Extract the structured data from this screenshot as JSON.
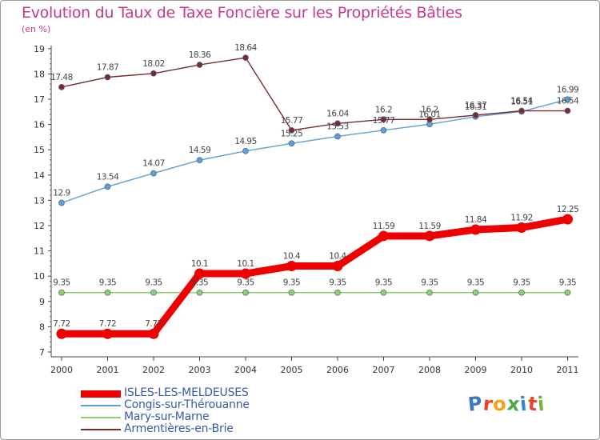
{
  "page": {
    "title": "Evolution du Taux de Taxe Foncière sur les Propriétés Bâties",
    "unit_label": "(en %)"
  },
  "logo": {
    "text": "Proxiti",
    "letters": [
      "P",
      "r",
      "o",
      "x",
      "i",
      "t",
      "i"
    ],
    "colors": [
      "#3a78c4",
      "#e8432f",
      "#f3a21b",
      "#4aa84a",
      "#2f8bd1",
      "#e8432f",
      "#6fb83a"
    ]
  },
  "chart_data": {
    "type": "line",
    "title": "Evolution du Taux de Taxe Foncière sur les Propriétés Bâties",
    "ylabel": "(en %)",
    "xlabel": "",
    "x": [
      "2000",
      "2001",
      "2002",
      "2003",
      "2004",
      "2005",
      "2006",
      "2007",
      "2008",
      "2009",
      "2010",
      "2011"
    ],
    "yticks": [
      7,
      8,
      9,
      10,
      11,
      12,
      13,
      14,
      15,
      16,
      17,
      18,
      19
    ],
    "ylim": [
      7,
      19
    ],
    "grid": false,
    "legend_position": "bottom-left",
    "series": [
      {
        "name": "ISLES-LES-MELDEUSES",
        "color": "#ee0000",
        "style": "thick",
        "values": [
          7.72,
          7.72,
          7.72,
          10.1,
          10.1,
          10.4,
          10.4,
          11.59,
          11.59,
          11.84,
          11.92,
          12.25
        ],
        "labels": [
          "7.72",
          "7.72",
          "7.72",
          "10.1",
          "10.1",
          "10.4",
          "10.4",
          "11.59",
          "11.59",
          "11.84",
          "11.92",
          "12.25"
        ]
      },
      {
        "name": "Congis-sur-Thérouanne",
        "color": "#5f9fd8",
        "style": "thin",
        "values": [
          12.9,
          13.54,
          14.07,
          14.59,
          14.95,
          15.25,
          15.53,
          15.77,
          16.01,
          16.31,
          16.51,
          16.99
        ],
        "labels": [
          "12.9",
          "13.54",
          "14.07",
          "14.59",
          "14.95",
          "15.25",
          "15.53",
          "15.77",
          "16.01",
          "16.31",
          "16.51",
          "16.99"
        ]
      },
      {
        "name": "Mary-sur-Marne",
        "color": "#8ed36a",
        "style": "thin",
        "values": [
          9.35,
          9.35,
          9.35,
          9.35,
          9.35,
          9.35,
          9.35,
          9.35,
          9.35,
          9.35,
          9.35,
          9.35
        ],
        "labels": [
          "9.35",
          "9.35",
          "9.35",
          "9.35",
          "9.35",
          "9.35",
          "9.35",
          "9.35",
          "9.35",
          "9.35",
          "9.35",
          "9.35"
        ]
      },
      {
        "name": "Armentières-en-Brie",
        "color": "#7a2a2a",
        "style": "thin",
        "values": [
          17.48,
          17.87,
          18.02,
          18.36,
          18.64,
          15.77,
          16.04,
          16.2,
          16.2,
          16.37,
          16.54,
          16.54
        ],
        "labels": [
          "17.48",
          "17.87",
          "18.02",
          "18.36",
          "18.64",
          "15.77",
          "16.04",
          "16.2",
          "16.2",
          "16.37",
          "16.54",
          "16.54"
        ]
      }
    ]
  }
}
